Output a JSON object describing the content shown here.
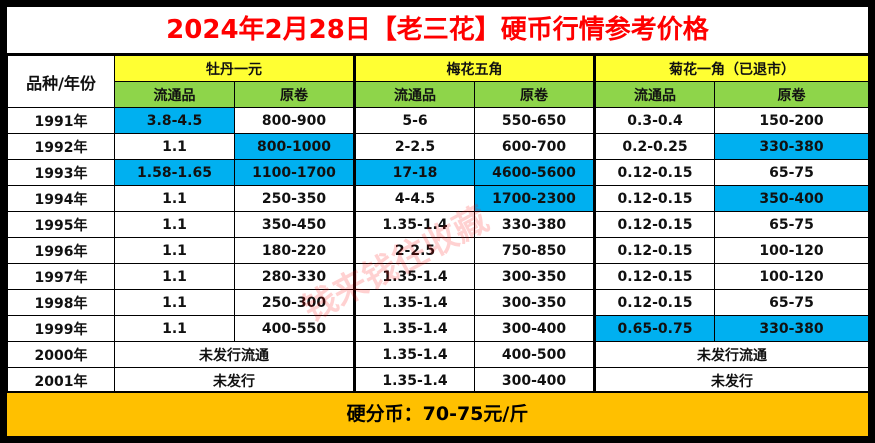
{
  "title": "2024年2月28日【老三花】硬币行情参考价格",
  "header": {
    "corner": "品种/年份",
    "groups": [
      "牡丹一元",
      "梅花五角",
      "菊花一角（已退市）"
    ],
    "sub": [
      "流通品",
      "原卷",
      "流通品",
      "原卷",
      "流通品",
      "原卷"
    ]
  },
  "rows": [
    {
      "year": "1991年",
      "c": [
        "3.8-4.5",
        "800-900",
        "5-6",
        "550-650",
        "0.3-0.4",
        "150-200"
      ]
    },
    {
      "year": "1992年",
      "c": [
        "1.1",
        "800-1000",
        "2-2.5",
        "600-700",
        "0.2-0.25",
        "330-380"
      ]
    },
    {
      "year": "1993年",
      "c": [
        "1.58-1.65",
        "1100-1700",
        "17-18",
        "4600-5600",
        "0.12-0.15",
        "65-75"
      ]
    },
    {
      "year": "1994年",
      "c": [
        "1.1",
        "250-350",
        "4-4.5",
        "1700-2300",
        "0.12-0.15",
        "350-400"
      ]
    },
    {
      "year": "1995年",
      "c": [
        "1.1",
        "350-450",
        "1.35-1.4",
        "330-380",
        "0.12-0.15",
        "65-75"
      ]
    },
    {
      "year": "1996年",
      "c": [
        "1.1",
        "180-220",
        "2-2.5",
        "750-850",
        "0.12-0.15",
        "100-120"
      ]
    },
    {
      "year": "1997年",
      "c": [
        "1.1",
        "280-330",
        "1.35-1.4",
        "300-350",
        "0.12-0.15",
        "100-120"
      ]
    },
    {
      "year": "1998年",
      "c": [
        "1.1",
        "250-300",
        "1.35-1.4",
        "300-350",
        "0.12-0.15",
        "65-75"
      ]
    },
    {
      "year": "1999年",
      "c": [
        "1.1",
        "400-550",
        "1.35-1.4",
        "300-400",
        "0.65-0.75",
        "330-380"
      ]
    },
    {
      "year": "2000年",
      "a": "未发行流通",
      "c3": "1.35-1.4",
      "c4": "400-500",
      "b": "未发行流通"
    },
    {
      "year": "2001年",
      "a": "未发行",
      "c3": "1.35-1.4",
      "c4": "300-400",
      "b": "未发行"
    }
  ],
  "footer": "硬分币：70-75元/斤",
  "watermark": "钱来钱往收藏",
  "colors": {
    "title": "#ff0000",
    "group_header": "#ffff33",
    "sub_header": "#8ed54a",
    "highlight": "#00b0f0",
    "footer": "#ffc000"
  }
}
